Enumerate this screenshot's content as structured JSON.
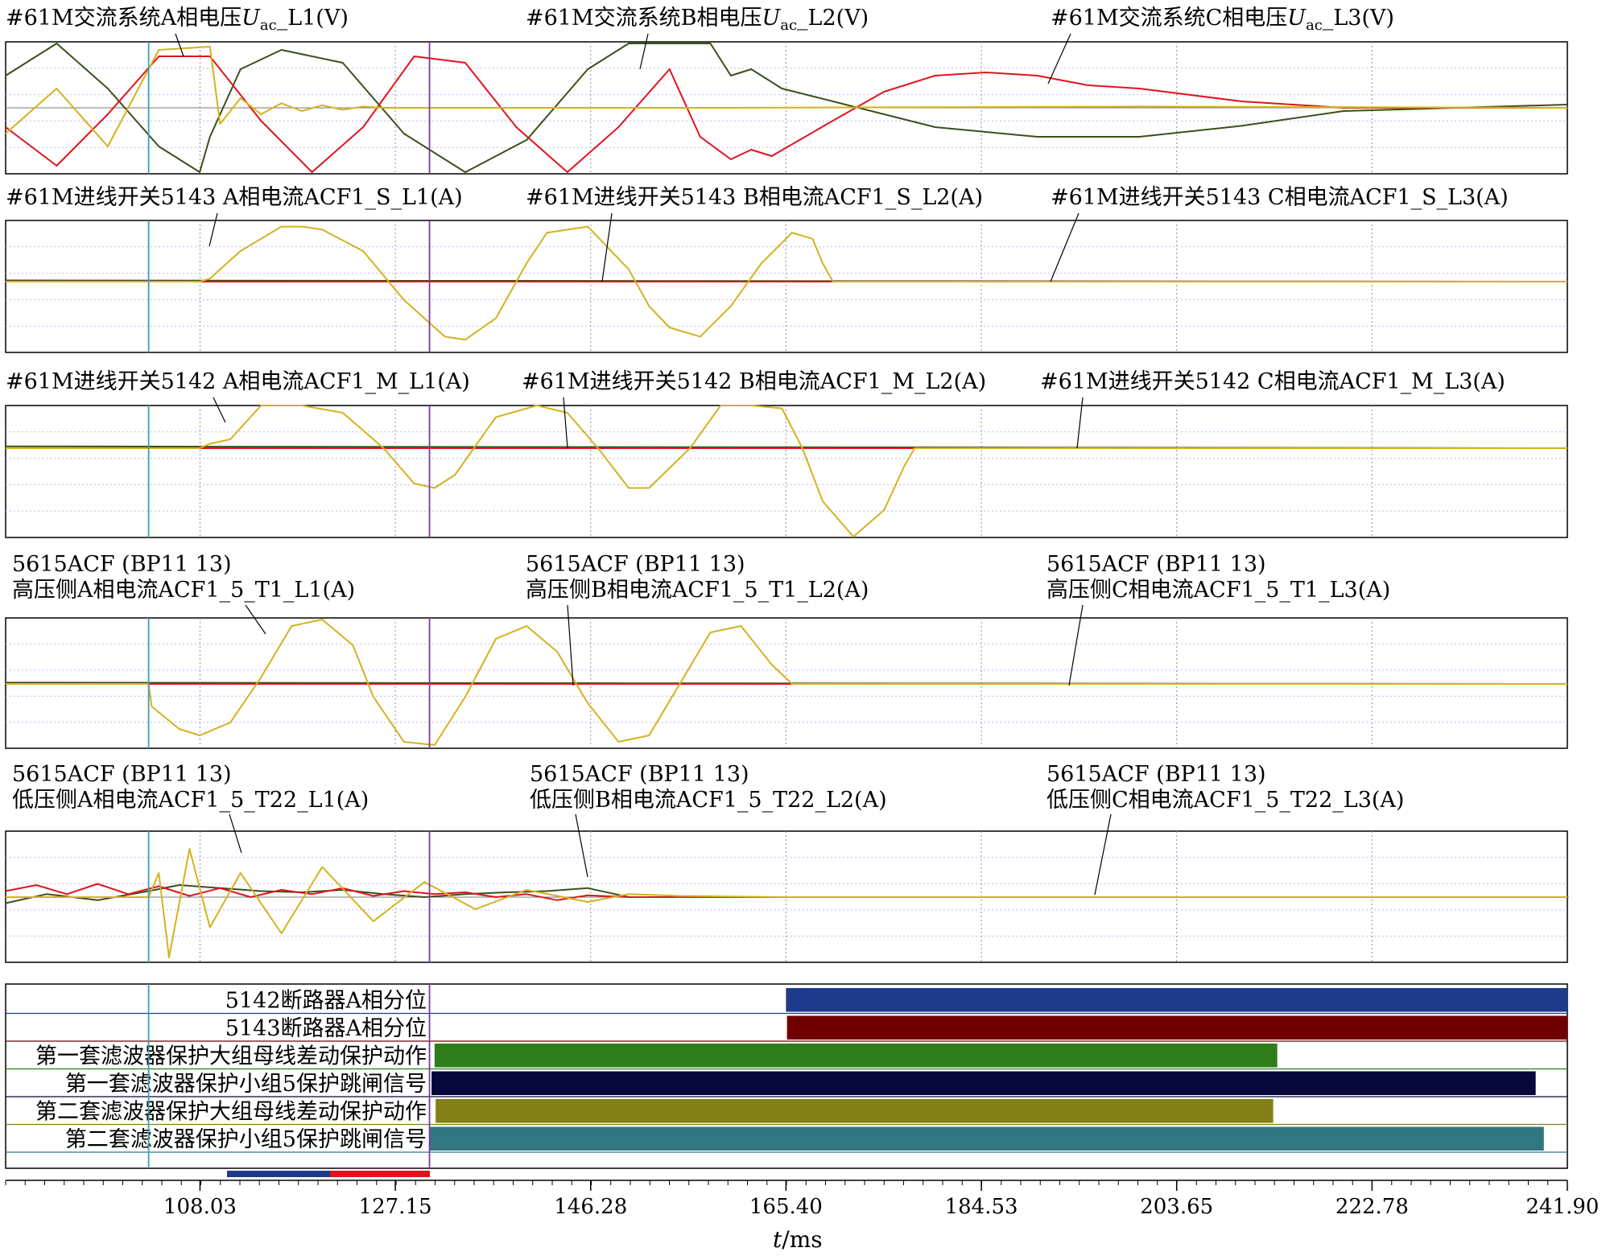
{
  "chart_data": {
    "type": "line",
    "xlabel_prefix": "t",
    "xlabel_unit": "/ms",
    "x_range": [
      89.0,
      241.9
    ],
    "x_ticks": [
      "108.03",
      "127.15",
      "146.28",
      "165.40",
      "184.53",
      "203.65",
      "222.78",
      "241.90"
    ],
    "x_tick_values": [
      108.03,
      127.15,
      146.28,
      165.4,
      184.53,
      203.65,
      222.78,
      241.9
    ],
    "cursors": [
      {
        "name": "cursor-1",
        "x": 103.0,
        "color": "#3aa0b8"
      },
      {
        "name": "cursor-2",
        "x": 130.5,
        "color": "#7b3a9a"
      }
    ],
    "colors": {
      "A": "#d4b21e",
      "B": "#3b4f1a",
      "C": "#e0141c"
    },
    "panels": [
      {
        "id": "p1",
        "labels": [
          {
            "prefix": "#61M交流系统A相电压",
            "var": "U",
            "sub": "ac",
            "suffix": "_L1(V)"
          },
          {
            "prefix": "#61M交流系统B相电压",
            "var": "U",
            "sub": "ac",
            "suffix": "_L2(V)"
          },
          {
            "prefix": "#61M交流系统C相电压",
            "var": "U",
            "sub": "ac",
            "suffix": "_L3(V)"
          }
        ],
        "series": [
          {
            "name": "A",
            "x": [
              89,
              94,
              99,
              104,
              109,
              110,
              112,
              114,
              116,
              118,
              120,
              122,
              124,
              126,
              128,
              130,
              140,
              160,
              200,
              241.9
            ],
            "y": [
              -0.4,
              0.3,
              -0.6,
              0.9,
              0.95,
              -0.25,
              0.15,
              -0.1,
              0.07,
              -0.05,
              0.04,
              -0.03,
              0.02,
              0,
              0,
              0,
              0,
              0,
              0.02,
              0
            ]
          },
          {
            "name": "B",
            "x": [
              89,
              94,
              99,
              104,
              108,
              109,
              112,
              116,
              122,
              128,
              134,
              140,
              146,
              150,
              154,
              158,
              160,
              162,
              165,
              170,
              180,
              190,
              200,
              210,
              220,
              241.9
            ],
            "y": [
              0.5,
              1.0,
              0.3,
              -0.6,
              -1.0,
              -0.45,
              0.6,
              0.9,
              0.7,
              -0.4,
              -1.0,
              -0.5,
              0.6,
              1.0,
              1.0,
              1.0,
              0.5,
              0.6,
              0.3,
              0.1,
              -0.3,
              -0.45,
              -0.45,
              -0.28,
              -0.05,
              0.05
            ]
          },
          {
            "name": "C",
            "x": [
              89,
              94,
              99,
              104,
              109,
              114,
              119,
              124,
              129,
              134,
              139,
              144,
              149,
              154,
              157,
              160,
              162,
              164,
              170,
              175,
              180,
              185,
              190,
              195,
              200,
              210,
              220,
              241.9
            ],
            "y": [
              -0.3,
              -0.9,
              -0.1,
              0.8,
              0.8,
              -0.2,
              -1.0,
              -0.3,
              0.8,
              0.7,
              -0.3,
              -1.0,
              -0.3,
              0.6,
              -0.45,
              -0.8,
              -0.65,
              -0.75,
              -0.2,
              0.25,
              0.5,
              0.55,
              0.5,
              0.35,
              0.3,
              0.1,
              0,
              0
            ]
          }
        ]
      },
      {
        "id": "p2",
        "labels": [
          {
            "prefix": "#61M进线开关5143 A相电流ACF1_S_L1(A)"
          },
          {
            "prefix": "#61M进线开关5143 B相电流ACF1_S_L2(A)"
          },
          {
            "prefix": "#61M进线开关5143 C相电流ACF1_S_L3(A)"
          }
        ],
        "series": [
          {
            "name": "A",
            "x": [
              89,
              108,
              109,
              110,
              112,
              114,
              116,
              118,
              120,
              124,
              128,
              132,
              134,
              137,
              140,
              142,
              146,
              150,
              152,
              154,
              157,
              160,
              163,
              166,
              168,
              169,
              170,
              241.9
            ],
            "y": [
              0,
              0,
              0.05,
              0.2,
              0.5,
              0.7,
              0.9,
              0.9,
              0.85,
              0.5,
              -0.3,
              -0.9,
              -0.95,
              -0.6,
              0.3,
              0.8,
              0.9,
              0.2,
              -0.4,
              -0.75,
              -0.9,
              -0.4,
              0.3,
              0.8,
              0.7,
              0.3,
              0,
              0
            ]
          },
          {
            "name": "B",
            "x": [
              89,
              152,
              241.9
            ],
            "y": [
              0.02,
              0.01,
              0
            ]
          },
          {
            "name": "C",
            "x": [
              89,
              241.9
            ],
            "y": [
              0,
              0
            ]
          }
        ]
      },
      {
        "id": "p3",
        "labels": [
          {
            "prefix": "#61M进线开关5142 A相电流ACF1_M_L1(A)"
          },
          {
            "prefix": "#61M进线开关5142 B相电流ACF1_M_L2(A)"
          },
          {
            "prefix": "#61M进线开关5142 C相电流ACF1_M_L3(A)"
          }
        ],
        "series": [
          {
            "name": "A",
            "x": [
              89,
              108,
              109,
              111,
              114,
              118,
              122,
              126,
              129,
              131,
              133,
              137,
              141,
              144,
              147,
              150,
              152,
              156,
              159,
              162,
              165,
              167,
              169,
              172,
              175,
              177,
              178,
              179,
              241.9
            ],
            "y": [
              0,
              0,
              0.05,
              0.1,
              0.5,
              0.55,
              0.4,
              0,
              -0.4,
              -0.45,
              -0.3,
              0.35,
              0.55,
              0.4,
              0,
              -0.45,
              -0.45,
              0,
              0.5,
              0.6,
              0.45,
              0,
              -0.6,
              -1.0,
              -0.7,
              -0.2,
              0,
              0,
              0
            ]
          },
          {
            "name": "B",
            "x": [
              89,
              168,
              241.9
            ],
            "y": [
              0.02,
              0.01,
              0
            ]
          },
          {
            "name": "C",
            "x": [
              89,
              241.9
            ],
            "y": [
              0,
              0
            ]
          }
        ]
      },
      {
        "id": "p4",
        "labels": [
          {
            "prefix": "5615ACF (BP11 13)",
            "line2": "高压侧A相电流ACF1_5_T1_L1(A)"
          },
          {
            "prefix": "5615ACF (BP11 13)",
            "line2": "高压侧B相电流ACF1_5_T1_L2(A)"
          },
          {
            "prefix": "5615ACF (BP11 13)",
            "line2": "高压侧C相电流ACF1_5_T1_L3(A)"
          }
        ],
        "series": [
          {
            "name": "A",
            "x": [
              89,
              103,
              103.3,
              106,
              108,
              111,
              114,
              117,
              120,
              123,
              125,
              128,
              131,
              134,
              137,
              140,
              143,
              146,
              149,
              152,
              155,
              158,
              161,
              164,
              166,
              241.9
            ],
            "y": [
              0,
              0,
              -0.35,
              -0.7,
              -0.8,
              -0.6,
              0.1,
              0.9,
              1.0,
              0.6,
              -0.2,
              -0.9,
              -0.95,
              -0.2,
              0.7,
              0.9,
              0.5,
              -0.3,
              -0.9,
              -0.8,
              0,
              0.8,
              0.9,
              0.3,
              0,
              0
            ]
          },
          {
            "name": "B",
            "x": [
              89,
              150,
              241.9
            ],
            "y": [
              0.02,
              0.01,
              0
            ]
          },
          {
            "name": "C",
            "x": [
              89,
              241.9
            ],
            "y": [
              0,
              0
            ]
          }
        ]
      },
      {
        "id": "p5",
        "labels": [
          {
            "prefix": "5615ACF (BP11 13)",
            "line2": "低压侧A相电流ACF1_5_T22_L1(A)"
          },
          {
            "prefix": "5615ACF (BP11 13)",
            "line2": "低压侧B相电流ACF1_5_T22_L2(A)"
          },
          {
            "prefix": "5615ACF (BP11 13)",
            "line2": "低压侧C相电流ACF1_5_T22_L3(A)"
          }
        ],
        "series": [
          {
            "name": "A",
            "x": [
              89,
              103,
              104,
              105,
              107,
              109,
              112,
              116,
              120,
              125,
              130,
              135,
              140,
              146,
              150,
              155,
              165,
              241.9
            ],
            "y": [
              0,
              0,
              0.4,
              -1.0,
              0.8,
              -0.5,
              0.4,
              -0.6,
              0.5,
              -0.4,
              0.25,
              -0.2,
              0.12,
              -0.08,
              0.05,
              0.02,
              0,
              0
            ]
          },
          {
            "name": "B",
            "x": [
              89,
              93,
              98,
              103,
              106,
              110,
              114,
              118,
              122,
              126,
              130,
              134,
              138,
              142,
              146,
              150,
              242
            ],
            "y": [
              -0.1,
              0.05,
              -0.05,
              0.1,
              0.2,
              0.15,
              0.1,
              0.08,
              0.12,
              0.05,
              0.0,
              0.05,
              0.08,
              0.1,
              0.15,
              0.0,
              0
            ]
          },
          {
            "name": "C",
            "x": [
              89,
              92,
              95,
              98,
              101,
              104,
              107,
              110,
              113,
              116,
              119,
              122,
              125,
              128,
              131,
              134,
              137,
              140,
              143,
              146,
              150,
              241.9
            ],
            "y": [
              0.1,
              0.2,
              0.05,
              0.22,
              0.05,
              0.18,
              0.02,
              0.15,
              0.0,
              0.12,
              0.05,
              0.15,
              0.02,
              0.1,
              0.05,
              0.08,
              0.0,
              0.05,
              -0.05,
              0.03,
              0,
              0
            ]
          }
        ]
      }
    ],
    "digital": [
      {
        "label": "5142断路器A相分位",
        "start": 165.4,
        "end": 241.9,
        "color": "#1f3a8a"
      },
      {
        "label": "5143断路器A相分位",
        "start": 165.5,
        "end": 241.9,
        "color": "#700000"
      },
      {
        "label": "第一套滤波器保护大组母线差动保护动作",
        "start": 131.0,
        "end": 213.5,
        "color": "#2e7d1a"
      },
      {
        "label": "第一套滤波器保护小组5保护跳闸信号",
        "start": 130.7,
        "end": 238.8,
        "color": "#06083a"
      },
      {
        "label": "第二套滤波器保护大组母线差动保护动作",
        "start": 131.1,
        "end": 213.1,
        "color": "#817f16"
      },
      {
        "label": "第二套滤波器保护小组5保护跳闸信号",
        "start": 130.5,
        "end": 239.6,
        "color": "#327682"
      }
    ]
  }
}
